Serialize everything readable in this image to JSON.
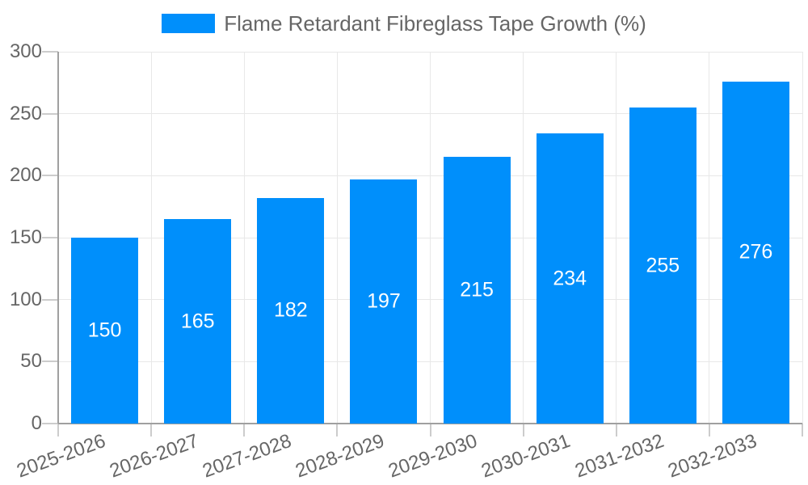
{
  "chart_data": {
    "type": "bar",
    "title": "Flame Retardant Fibreglass Tape Growth (%)",
    "legend_position": "top",
    "categories": [
      "2025-2026",
      "2026-2027",
      "2027-2028",
      "2028-2029",
      "2029-2030",
      "2030-2031",
      "2031-2032",
      "2032-2033"
    ],
    "values": [
      150,
      165,
      182,
      197,
      215,
      234,
      255,
      276
    ],
    "xlabel": "",
    "ylabel": "",
    "ylim": [
      0,
      300
    ],
    "yticks": [
      0,
      50,
      100,
      150,
      200,
      250,
      300
    ],
    "grid": true,
    "colors": {
      "bar": "#008FFB",
      "value_label": "#ffffff",
      "axis_text": "#666666",
      "legend_text": "#666666",
      "gridline": "#e8e8e8",
      "tick": "#cccccc",
      "axis_line": "#a0a0a0",
      "background": "#ffffff"
    }
  }
}
